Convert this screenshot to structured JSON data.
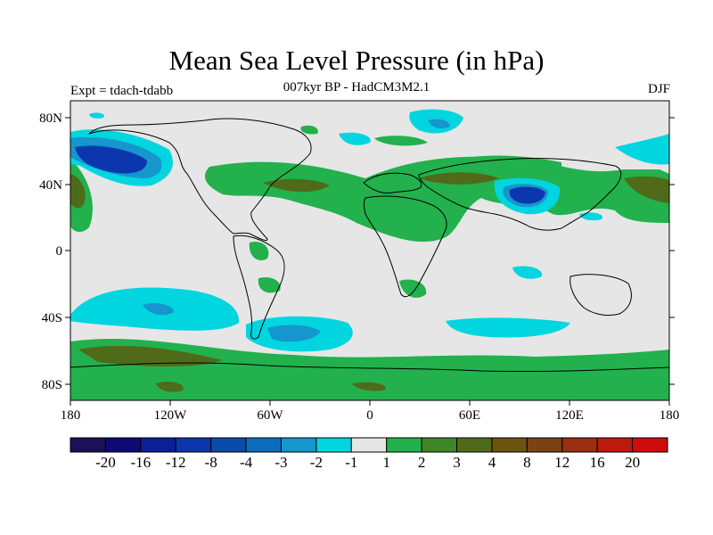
{
  "title": "Mean Sea Level Pressure (in hPa)",
  "subtitle": "007kyr BP - HadCM3M2.1",
  "left_note": "Expt = tdach-tdabb",
  "right_note": "DJF",
  "map": {
    "lat_labels": [
      "80N",
      "40N",
      "0",
      "40S",
      "80S"
    ],
    "lon_labels": [
      "180",
      "120W",
      "60W",
      "0",
      "60E",
      "120E",
      "180"
    ],
    "background_color": "#e6e6e6",
    "coastline_color": "#000000"
  },
  "colorbar": {
    "colors": [
      "#1a1158",
      "#0d0a78",
      "#0a1f98",
      "#0b36ad",
      "#0a4ca9",
      "#0d6dbd",
      "#1596cc",
      "#00d5e0",
      "#e6e6e6",
      "#22b14c",
      "#3f8726",
      "#4f6b1a",
      "#6b5410",
      "#7a4215",
      "#9a2f12",
      "#bb1a0d",
      "#d10b0b"
    ],
    "labels": [
      "-20",
      "-16",
      "-12",
      "-8",
      "-4",
      "-3",
      "-2",
      "-1",
      "1",
      "2",
      "3",
      "4",
      "8",
      "12",
      "16",
      "20"
    ]
  }
}
